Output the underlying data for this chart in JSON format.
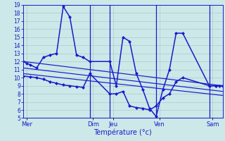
{
  "xlabel": "Température (°c)",
  "bg_color": "#cce8e8",
  "grid_color": "#aacccc",
  "line_color": "#1a1acc",
  "ylim": [
    5,
    19
  ],
  "yticks": [
    5,
    6,
    7,
    8,
    9,
    10,
    11,
    12,
    13,
    14,
    15,
    16,
    17,
    18,
    19
  ],
  "day_labels": [
    "Mer",
    "Dim",
    "Jeu",
    "Ven",
    "Sam"
  ],
  "day_positions": [
    0.5,
    10.5,
    13.5,
    20.5,
    28.5
  ],
  "vline_positions": [
    10.0,
    13.0,
    20.0,
    28.0
  ],
  "x_min": 0,
  "x_max": 30,
  "main_x": [
    0,
    0.5,
    1,
    2,
    3,
    4,
    5,
    6,
    7,
    8,
    9,
    10,
    13,
    14,
    15,
    16,
    17,
    18,
    19,
    20,
    21,
    22,
    23,
    24,
    28,
    29,
    29.5,
    30
  ],
  "main_y": [
    12,
    11.8,
    11.6,
    11.2,
    12.5,
    12.8,
    13.0,
    18.8,
    17.5,
    12.8,
    12.5,
    12.0,
    12.0,
    9.0,
    15.0,
    14.5,
    10.5,
    8.5,
    6.2,
    5.2,
    8.5,
    11.0,
    15.5,
    15.5,
    9.0,
    9.0,
    9.0,
    9.0
  ],
  "line2_x": [
    0,
    1,
    2,
    3,
    4,
    5,
    6,
    7,
    8,
    9,
    10,
    13,
    14,
    15,
    16,
    17,
    18,
    19,
    20,
    21,
    22,
    23,
    24,
    28,
    29,
    30
  ],
  "line2_y": [
    10.2,
    10.1,
    10.0,
    9.8,
    9.5,
    9.3,
    9.1,
    9.0,
    8.9,
    8.8,
    10.5,
    8.0,
    8.0,
    8.3,
    6.5,
    6.3,
    6.2,
    6.0,
    6.5,
    7.5,
    8.0,
    9.5,
    10.0,
    9.0,
    9.0,
    9.0
  ],
  "trend_lines": [
    {
      "x": [
        0,
        30
      ],
      "y": [
        12.0,
        9.0
      ]
    },
    {
      "x": [
        0,
        30
      ],
      "y": [
        11.2,
        8.3
      ]
    },
    {
      "x": [
        0,
        30
      ],
      "y": [
        10.5,
        7.8
      ]
    }
  ]
}
